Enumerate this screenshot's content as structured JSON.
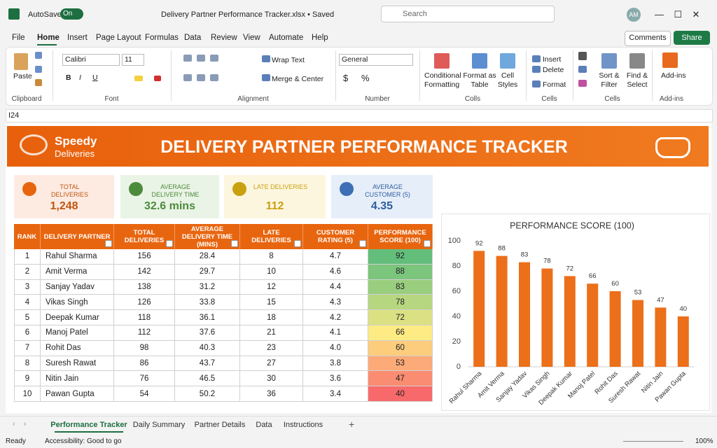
{
  "titlebar": {
    "autosave": "AutoSave",
    "toggle": "On",
    "filename": "Delivery Partner Performance Tracker.xlsx • Saved",
    "search": "Search",
    "avatar": "AM"
  },
  "menu": {
    "tabs": [
      "File",
      "Home",
      "Insert",
      "Page Layout",
      "Formulas",
      "Data",
      "Review",
      "View",
      "Automate",
      "Help"
    ],
    "comments": "Comments",
    "share": "Share"
  },
  "ribbon": {
    "paste": "Paste",
    "font": "Calibri",
    "size": "11",
    "font_buttons": [
      "B",
      "I",
      "U"
    ],
    "wrap": "Wrap Text",
    "merge": "Merge & Center",
    "number_format": "General",
    "number_buttons": [
      "$",
      "%"
    ],
    "conditional": [
      "Conditional",
      "Formatting"
    ],
    "format_table": [
      "Format as",
      "Table"
    ],
    "cell_styles": [
      "Cell",
      "Styles"
    ],
    "insert": "Insert",
    "delete": "Delete",
    "format": "Format",
    "sort": [
      "Sort &",
      "Filter"
    ],
    "find": [
      "Find &",
      "Select"
    ],
    "addins": "Add-ins",
    "groups": [
      "Clipboard",
      "Font",
      "Alignment",
      "Number",
      "Colls",
      "Cells",
      "Cells",
      "Add-ins"
    ]
  },
  "formula_bar": {
    "name_box": "I24"
  },
  "banner": {
    "logo_top": "Speedy",
    "logo_bottom": "Deliveries",
    "title": "DELIVERY PARTNER PERFORMANCE TRACKER"
  },
  "kpis": [
    {
      "label": "TOTAL DELIVERIES",
      "value": "1,248"
    },
    {
      "label": "AVERAGE DELIVERY TIME",
      "value": "32.6 mins"
    },
    {
      "label": "LATE DELIVERIES",
      "value": "112"
    },
    {
      "label": "AVERAGE CUSTOMER (5)",
      "value": "4.35"
    }
  ],
  "table": {
    "headers": [
      "RANK",
      "DELIVERY PARTNER",
      "TOTAL DELIVERIES",
      "AVERAGE DELIVERY TIME (MINS)",
      "LATE DELIVERIES",
      "CUSTOMER RATING (5)",
      "PERFORMANCE SCORE (100)"
    ],
    "rows": [
      [
        "1",
        "Rahul Sharma",
        "156",
        "28.4",
        "8",
        "4.7",
        "92"
      ],
      [
        "2",
        "Amit Verma",
        "142",
        "29.7",
        "10",
        "4.6",
        "88"
      ],
      [
        "3",
        "Sanjay Yadav",
        "138",
        "31.2",
        "12",
        "4.4",
        "83"
      ],
      [
        "4",
        "Vikas Singh",
        "126",
        "33.8",
        "15",
        "4.3",
        "78"
      ],
      [
        "5",
        "Deepak Kumar",
        "118",
        "36.1",
        "18",
        "4.2",
        "72"
      ],
      [
        "6",
        "Manoj Patel",
        "112",
        "37.6",
        "21",
        "4.1",
        "66"
      ],
      [
        "7",
        "Rohit Das",
        "98",
        "40.3",
        "23",
        "4.0",
        "60"
      ],
      [
        "8",
        "Suresh Rawat",
        "86",
        "43.7",
        "27",
        "3.8",
        "53"
      ],
      [
        "9",
        "Nitin Jain",
        "76",
        "46.5",
        "30",
        "3.6",
        "47"
      ],
      [
        "10",
        "Pawan Gupta",
        "54",
        "50.2",
        "36",
        "3.4",
        "40"
      ]
    ]
  },
  "chart_data": {
    "type": "bar",
    "title": "PERFORMANCE SCORE (100)",
    "categories": [
      "Rahul Sharma",
      "Amit Verma",
      "Sanjay Yadav",
      "Vikas Singh",
      "Deepak Kumar",
      "Manoj Patel",
      "Rohit Das",
      "Suresh Rawat",
      "Nitin Jain",
      "Pawan Gupta"
    ],
    "values": [
      92,
      88,
      83,
      78,
      72,
      66,
      60,
      53,
      47,
      40
    ],
    "color": "#ec6f1a",
    "ylim": [
      0,
      100
    ],
    "yticks": [
      0,
      20,
      40,
      60,
      80,
      100
    ],
    "grid": false
  },
  "sheet_tabs": [
    "Performance Tracker",
    "Daily Summary",
    "Partner Details",
    "Data",
    "Instructions"
  ],
  "status": {
    "ready": "Ready",
    "accessibility": "Accessibility: Good to go",
    "zoom": "100%"
  }
}
